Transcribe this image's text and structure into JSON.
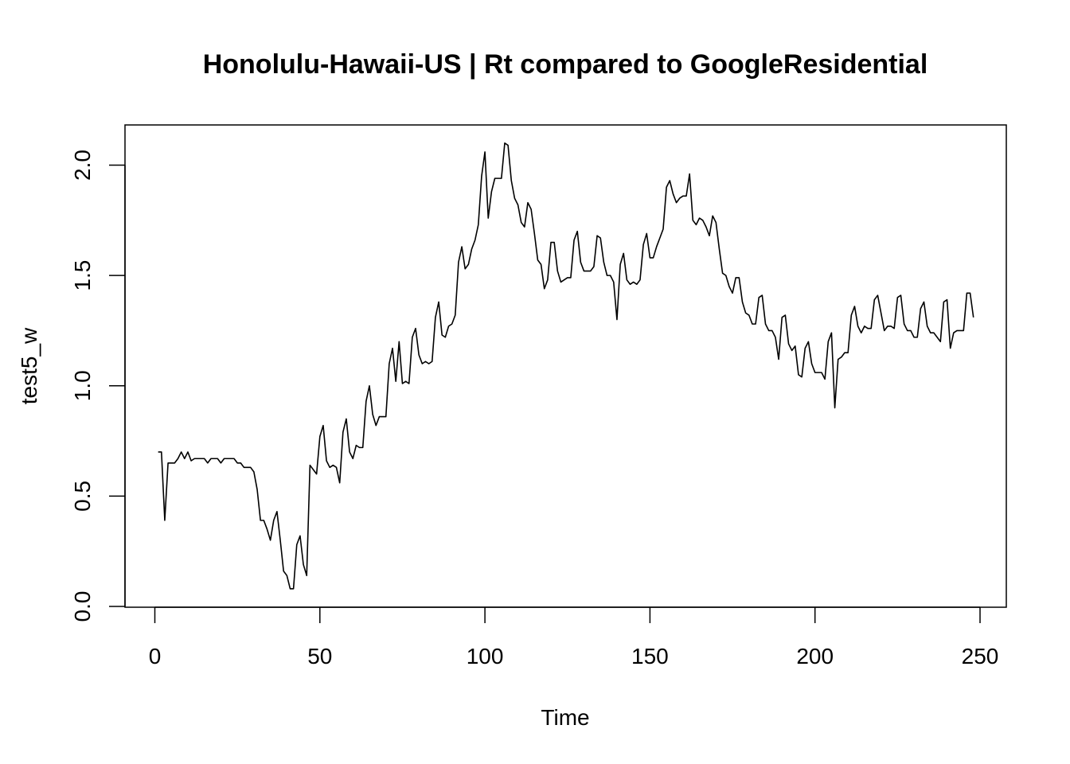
{
  "chart_data": {
    "type": "line",
    "title": "Honolulu-Hawaii-US | Rt compared to GoogleResidential",
    "xlabel": "Time",
    "ylabel": "test5_w",
    "xlim": [
      1,
      248
    ],
    "ylim": [
      0.0,
      2.1
    ],
    "x_ticks": [
      0,
      50,
      100,
      150,
      200,
      250
    ],
    "y_ticks": [
      0.0,
      0.5,
      1.0,
      1.5,
      2.0
    ],
    "x_tick_labels": [
      "0",
      "50",
      "100",
      "150",
      "200",
      "250"
    ],
    "y_tick_labels": [
      "0.0",
      "0.5",
      "1.0",
      "1.5",
      "2.0"
    ],
    "grid": false,
    "legend": "none",
    "line_color": "#000000",
    "series": [
      {
        "x_start": 1,
        "values": [
          0.7,
          0.7,
          0.39,
          0.65,
          0.65,
          0.65,
          0.67,
          0.7,
          0.67,
          0.7,
          0.66,
          0.67,
          0.67,
          0.67,
          0.67,
          0.65,
          0.67,
          0.67,
          0.67,
          0.65,
          0.67,
          0.67,
          0.67,
          0.67,
          0.65,
          0.65,
          0.63,
          0.63,
          0.63,
          0.61,
          0.53,
          0.39,
          0.39,
          0.35,
          0.3,
          0.39,
          0.43,
          0.3,
          0.16,
          0.14,
          0.08,
          0.08,
          0.28,
          0.32,
          0.19,
          0.14,
          0.64,
          0.62,
          0.6,
          0.77,
          0.82,
          0.66,
          0.63,
          0.64,
          0.63,
          0.56,
          0.79,
          0.85,
          0.7,
          0.67,
          0.73,
          0.72,
          0.72,
          0.93,
          1.0,
          0.87,
          0.82,
          0.86,
          0.86,
          0.86,
          1.1,
          1.17,
          1.02,
          1.2,
          1.01,
          1.02,
          1.01,
          1.22,
          1.26,
          1.14,
          1.1,
          1.11,
          1.1,
          1.11,
          1.31,
          1.38,
          1.23,
          1.22,
          1.27,
          1.28,
          1.32,
          1.56,
          1.63,
          1.53,
          1.55,
          1.62,
          1.66,
          1.73,
          1.95,
          2.06,
          1.76,
          1.88,
          1.94,
          1.94,
          1.94,
          2.1,
          2.09,
          1.93,
          1.85,
          1.82,
          1.74,
          1.72,
          1.83,
          1.8,
          1.69,
          1.57,
          1.55,
          1.44,
          1.48,
          1.65,
          1.65,
          1.52,
          1.47,
          1.48,
          1.49,
          1.49,
          1.66,
          1.7,
          1.56,
          1.52,
          1.52,
          1.52,
          1.54,
          1.68,
          1.67,
          1.56,
          1.5,
          1.5,
          1.47,
          1.3,
          1.55,
          1.6,
          1.48,
          1.46,
          1.47,
          1.46,
          1.48,
          1.64,
          1.69,
          1.58,
          1.58,
          1.63,
          1.67,
          1.71,
          1.9,
          1.93,
          1.87,
          1.83,
          1.85,
          1.86,
          1.86,
          1.96,
          1.75,
          1.73,
          1.76,
          1.75,
          1.72,
          1.68,
          1.77,
          1.74,
          1.62,
          1.51,
          1.5,
          1.45,
          1.42,
          1.49,
          1.49,
          1.38,
          1.33,
          1.32,
          1.28,
          1.28,
          1.4,
          1.41,
          1.28,
          1.25,
          1.25,
          1.22,
          1.12,
          1.31,
          1.32,
          1.19,
          1.16,
          1.18,
          1.05,
          1.04,
          1.17,
          1.2,
          1.1,
          1.06,
          1.06,
          1.06,
          1.03,
          1.2,
          1.24,
          0.9,
          1.12,
          1.13,
          1.15,
          1.15,
          1.32,
          1.36,
          1.27,
          1.24,
          1.27,
          1.26,
          1.26,
          1.39,
          1.41,
          1.33,
          1.25,
          1.27,
          1.27,
          1.26,
          1.4,
          1.41,
          1.28,
          1.25,
          1.25,
          1.22,
          1.22,
          1.35,
          1.38,
          1.27,
          1.24,
          1.24,
          1.22,
          1.2,
          1.38,
          1.39,
          1.17,
          1.24,
          1.25,
          1.25,
          1.25,
          1.42,
          1.42,
          1.31
        ]
      }
    ]
  }
}
